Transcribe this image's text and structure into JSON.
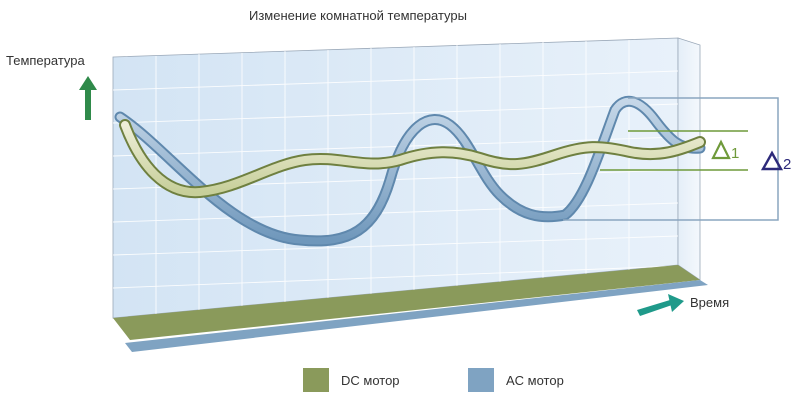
{
  "title": "Изменение комнатной температуры",
  "y_axis_label": "Температура",
  "x_axis_label": "Время",
  "delta_labels": {
    "delta1": "Δ1",
    "delta2": "Δ2"
  },
  "legend": [
    {
      "label": "DC мотор",
      "color": "#8a9a5b"
    },
    {
      "label": "AC мотор",
      "color": "#7fa3c2"
    }
  ],
  "colors": {
    "panel": "#dbe9f6",
    "grid": "#ffffff",
    "dc": "#8a9a5b",
    "dc_light": "#e6e8c8",
    "ac": "#7fa3c2",
    "ac_light": "#b9cfe2",
    "delta1": "#6f9a3a",
    "delta2": "#2d2a7a",
    "up_arrow": "#2f8a4a",
    "right_arrow": "#1f9a8a"
  }
}
